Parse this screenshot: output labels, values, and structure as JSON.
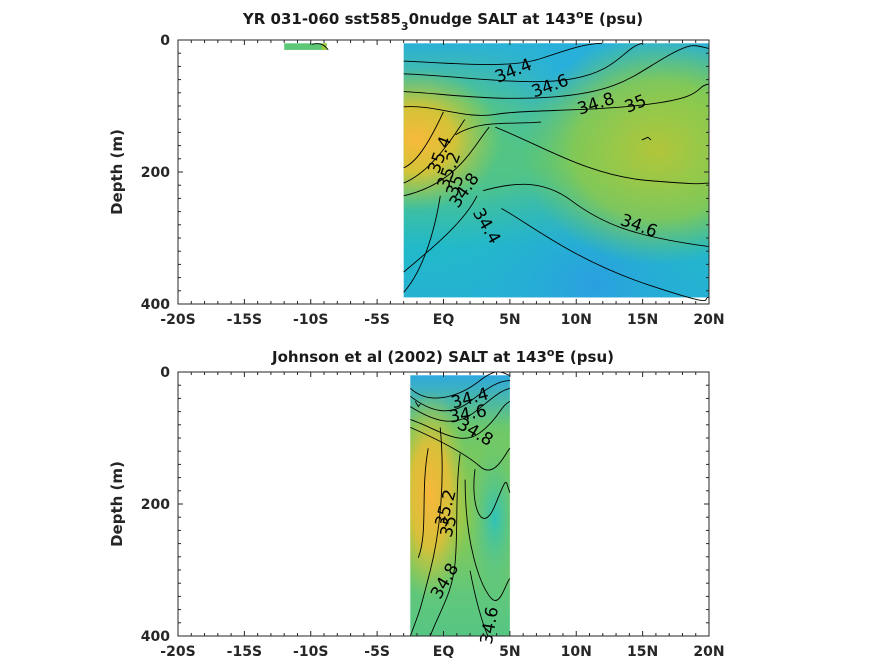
{
  "chart_data": [
    {
      "type": "heatmap",
      "title_main": "YR 031-060 sst585",
      "title_sub": "3",
      "title_rest": "0nudge SALT at 143",
      "title_sup": "o",
      "title_end": "E (psu)",
      "ylabel": "Depth (m)",
      "xlim": [
        -20,
        20
      ],
      "ylim": [
        0,
        400
      ],
      "x_ticks": [
        -20,
        -15,
        -10,
        -5,
        0,
        5,
        10,
        15,
        20
      ],
      "x_tick_labels": [
        "-20S",
        "-15S",
        "-10S",
        "-5S",
        "EQ",
        "5N",
        "10N",
        "15N",
        "20N"
      ],
      "y_ticks": [
        0,
        200,
        400
      ],
      "y_tick_labels": [
        "0",
        "200",
        "400"
      ],
      "data_extent": {
        "x": [
          -3,
          20
        ],
        "y": [
          5,
          390
        ]
      },
      "strip_extent": {
        "x": [
          -12,
          -8.8
        ],
        "y": [
          5,
          15
        ]
      },
      "contour_levels": [
        "34.4",
        "34.6",
        "34.8",
        "35",
        "35.2",
        "35.4"
      ],
      "colormap": [
        "#2ba7e0",
        "#1fbfbf",
        "#6fcf5c",
        "#b8c83a",
        "#f5b93b"
      ]
    },
    {
      "type": "heatmap",
      "title_main": "Johnson et al (2002) SALT at 143",
      "title_sup": "o",
      "title_end": "E (psu)",
      "ylabel": "Depth (m)",
      "xlim": [
        -20,
        20
      ],
      "ylim": [
        0,
        400
      ],
      "x_ticks": [
        -20,
        -15,
        -10,
        -5,
        0,
        5,
        10,
        15,
        20
      ],
      "x_tick_labels": [
        "-20S",
        "-15S",
        "-10S",
        "-5S",
        "EQ",
        "5N",
        "10N",
        "15N",
        "20N"
      ],
      "y_ticks": [
        0,
        200,
        400
      ],
      "y_tick_labels": [
        "0",
        "200",
        "400"
      ],
      "data_extent": {
        "x": [
          -2.5,
          5
        ],
        "y": [
          5,
          400
        ]
      },
      "contour_levels": [
        "34.4",
        "34.6",
        "34.8",
        "35",
        "35.2"
      ],
      "colormap": [
        "#2ba7e0",
        "#1fbfbf",
        "#6fcf5c",
        "#b8c83a",
        "#f5b93b"
      ]
    }
  ]
}
